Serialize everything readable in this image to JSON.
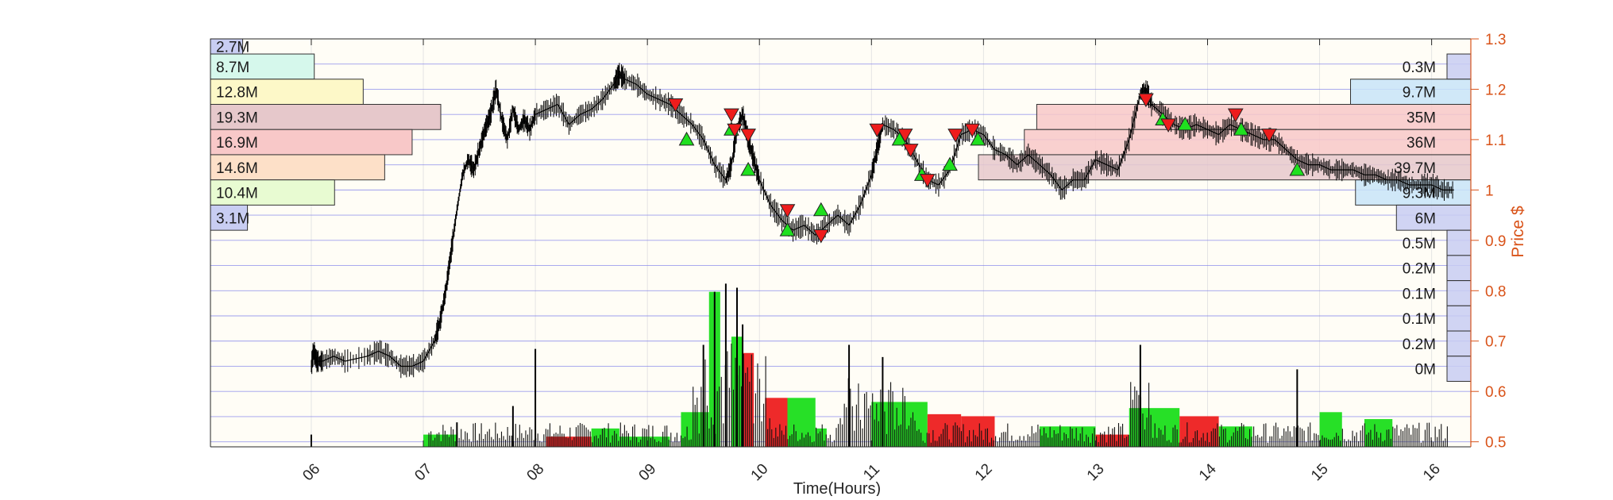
{
  "chart_data": {
    "type": "line",
    "title": "",
    "xlabel": "Time(Hours)",
    "ylabel": "Price $",
    "x_ticks": [
      "06",
      "07",
      "08",
      "09",
      "10",
      "11",
      "12",
      "13",
      "14",
      "15",
      "16"
    ],
    "x_range": [
      5.1,
      16.35
    ],
    "y_ticks": [
      0.5,
      0.6,
      0.7,
      0.8,
      0.9,
      1,
      1.1,
      1.2,
      1.3
    ],
    "y_tick_labels": [
      "0.5",
      "0.6",
      "0.7",
      "0.8",
      "0.9",
      "1",
      "1.1",
      "1.2",
      "1.3"
    ],
    "ylim": [
      0.49,
      1.3
    ],
    "grid": true,
    "price_series": {
      "x": [
        5.1,
        5.3,
        5.7,
        6.0,
        6.02,
        6.05,
        6.1,
        6.2,
        6.3,
        6.5,
        6.6,
        6.7,
        6.8,
        6.9,
        7.0,
        7.1,
        7.15,
        7.2,
        7.25,
        7.3,
        7.35,
        7.4,
        7.45,
        7.5,
        7.55,
        7.6,
        7.65,
        7.7,
        7.75,
        7.8,
        7.85,
        7.9,
        7.95,
        8.0,
        8.1,
        8.2,
        8.3,
        8.4,
        8.5,
        8.6,
        8.7,
        8.75,
        8.8,
        8.9,
        9.0,
        9.1,
        9.2,
        9.3,
        9.4,
        9.5,
        9.6,
        9.7,
        9.75,
        9.8,
        9.85,
        9.9,
        9.95,
        10.0,
        10.1,
        10.2,
        10.3,
        10.4,
        10.5,
        10.6,
        10.7,
        10.8,
        10.9,
        11.0,
        11.05,
        11.1,
        11.2,
        11.3,
        11.4,
        11.5,
        11.6,
        11.7,
        11.8,
        11.9,
        12.0,
        12.1,
        12.2,
        12.3,
        12.4,
        12.5,
        12.6,
        12.7,
        12.8,
        12.9,
        13.0,
        13.1,
        13.2,
        13.3,
        13.4,
        13.45,
        13.5,
        13.6,
        13.7,
        13.8,
        13.9,
        14.0,
        14.1,
        14.2,
        14.3,
        14.4,
        14.5,
        14.6,
        14.7,
        14.8,
        14.9,
        15.0,
        15.1,
        15.2,
        15.3,
        15.4,
        15.5,
        15.6,
        15.7,
        15.8,
        15.9,
        16.0,
        16.1,
        16.2
      ],
      "y": [
        null,
        null,
        null,
        0.65,
        0.68,
        0.66,
        0.66,
        0.67,
        0.66,
        0.67,
        0.68,
        0.67,
        0.65,
        0.65,
        0.66,
        0.7,
        0.74,
        0.8,
        0.88,
        0.96,
        1.03,
        1.06,
        1.04,
        1.08,
        1.12,
        1.15,
        1.2,
        1.14,
        1.1,
        1.16,
        1.12,
        1.14,
        1.12,
        1.15,
        1.16,
        1.17,
        1.13,
        1.15,
        1.16,
        1.18,
        1.21,
        1.23,
        1.22,
        1.21,
        1.19,
        1.18,
        1.17,
        1.15,
        1.13,
        1.1,
        1.05,
        1.02,
        1.05,
        1.12,
        1.15,
        1.1,
        1.06,
        1.02,
        0.97,
        0.94,
        0.92,
        0.93,
        0.91,
        0.93,
        0.95,
        0.93,
        0.97,
        1.03,
        1.08,
        1.13,
        1.12,
        1.1,
        1.06,
        1.02,
        1.01,
        1.04,
        1.11,
        1.12,
        1.11,
        1.08,
        1.07,
        1.05,
        1.07,
        1.05,
        1.03,
        1.0,
        1.02,
        1.02,
        1.06,
        1.05,
        1.04,
        1.1,
        1.19,
        1.2,
        1.17,
        1.15,
        1.13,
        1.12,
        1.13,
        1.12,
        1.11,
        1.13,
        1.12,
        1.11,
        1.1,
        1.1,
        1.08,
        1.06,
        1.05,
        1.05,
        1.04,
        1.04,
        1.04,
        1.03,
        1.03,
        1.02,
        1.02,
        1.01,
        1.01,
        1.01,
        1.0,
        1.0
      ]
    },
    "volume_profile_left": [
      {
        "label": "2.7M",
        "price_low": 1.27,
        "price_high": 1.3,
        "value": 2.7,
        "color": "#c8cdf2"
      },
      {
        "label": "8.7M",
        "price_low": 1.22,
        "price_high": 1.27,
        "value": 8.7,
        "color": "#d6f8ec"
      },
      {
        "label": "12.8M",
        "price_low": 1.17,
        "price_high": 1.22,
        "value": 12.8,
        "color": "#fdf8c8"
      },
      {
        "label": "19.3M",
        "price_low": 1.12,
        "price_high": 1.17,
        "value": 19.3,
        "color": "#e6c8cb"
      },
      {
        "label": "16.9M",
        "price_low": 1.07,
        "price_high": 1.12,
        "value": 16.9,
        "color": "#f8c8c8"
      },
      {
        "label": "14.6M",
        "price_low": 1.02,
        "price_high": 1.07,
        "value": 14.6,
        "color": "#fde0c8"
      },
      {
        "label": "10.4M",
        "price_low": 0.97,
        "price_high": 1.02,
        "value": 10.4,
        "color": "#e8fbd2"
      },
      {
        "label": "3.1M",
        "price_low": 0.92,
        "price_high": 0.97,
        "value": 3.1,
        "color": "#c8cdf2"
      }
    ],
    "volume_profile_right": [
      {
        "label": "0.3M",
        "price_low": 1.22,
        "price_high": 1.27,
        "value": 0.3,
        "color": "#c8cdf2"
      },
      {
        "label": "9.7M",
        "price_low": 1.17,
        "price_high": 1.22,
        "value": 9.7,
        "color": "#c8e4f8"
      },
      {
        "label": "35M",
        "price_low": 1.12,
        "price_high": 1.17,
        "value": 35,
        "color": "#f8c8c8"
      },
      {
        "label": "36M",
        "price_low": 1.07,
        "price_high": 1.12,
        "value": 36,
        "color": "#f8c8c8"
      },
      {
        "label": "39.7M",
        "price_low": 1.02,
        "price_high": 1.07,
        "value": 39.7,
        "color": "#e6c8cb"
      },
      {
        "label": "9.3M",
        "price_low": 0.97,
        "price_high": 1.02,
        "value": 9.3,
        "color": "#c8e4f8"
      },
      {
        "label": "6M",
        "price_low": 0.92,
        "price_high": 0.97,
        "value": 6,
        "color": "#c8cdf2"
      },
      {
        "label": "0.5M",
        "price_low": 0.87,
        "price_high": 0.92,
        "value": 0.5,
        "color": "#c8cdf2"
      },
      {
        "label": "0.2M",
        "price_low": 0.82,
        "price_high": 0.87,
        "value": 0.2,
        "color": "#c8cdf2"
      },
      {
        "label": "0.1M",
        "price_low": 0.77,
        "price_high": 0.82,
        "value": 0.1,
        "color": "#c8cdf2"
      },
      {
        "label": "0.1M",
        "price_low": 0.72,
        "price_high": 0.77,
        "value": 0.1,
        "color": "#c8cdf2"
      },
      {
        "label": "0.2M",
        "price_low": 0.67,
        "price_high": 0.72,
        "value": 0.2,
        "color": "#c8cdf2"
      },
      {
        "label": "0M",
        "price_low": 0.62,
        "price_high": 0.67,
        "value": 0,
        "color": "#c8cdf2"
      }
    ],
    "volume_blocks": [
      {
        "x_start": 7.0,
        "x_end": 7.3,
        "level": 0.03,
        "color": "green"
      },
      {
        "x_start": 8.1,
        "x_end": 8.5,
        "level": 0.025,
        "color": "red"
      },
      {
        "x_start": 8.5,
        "x_end": 8.75,
        "level": 0.045,
        "color": "green"
      },
      {
        "x_start": 8.75,
        "x_end": 9.2,
        "level": 0.025,
        "color": "green"
      },
      {
        "x_start": 9.3,
        "x_end": 9.55,
        "level": 0.085,
        "color": "green"
      },
      {
        "x_start": 9.55,
        "x_end": 9.65,
        "level": 0.38,
        "color": "green"
      },
      {
        "x_start": 9.75,
        "x_end": 9.85,
        "level": 0.27,
        "color": "green"
      },
      {
        "x_start": 9.85,
        "x_end": 9.95,
        "level": 0.23,
        "color": "red"
      },
      {
        "x_start": 10.05,
        "x_end": 10.25,
        "level": 0.12,
        "color": "red"
      },
      {
        "x_start": 10.25,
        "x_end": 10.5,
        "level": 0.12,
        "color": "green"
      },
      {
        "x_start": 10.5,
        "x_end": 10.6,
        "level": 0.045,
        "color": "green"
      },
      {
        "x_start": 11.0,
        "x_end": 11.5,
        "level": 0.11,
        "color": "green"
      },
      {
        "x_start": 11.5,
        "x_end": 11.8,
        "level": 0.08,
        "color": "red"
      },
      {
        "x_start": 11.8,
        "x_end": 12.1,
        "level": 0.075,
        "color": "red"
      },
      {
        "x_start": 12.5,
        "x_end": 13.0,
        "level": 0.05,
        "color": "green"
      },
      {
        "x_start": 13.0,
        "x_end": 13.3,
        "level": 0.03,
        "color": "red"
      },
      {
        "x_start": 13.3,
        "x_end": 13.75,
        "level": 0.095,
        "color": "green"
      },
      {
        "x_start": 13.75,
        "x_end": 14.1,
        "level": 0.075,
        "color": "red"
      },
      {
        "x_start": 14.1,
        "x_end": 14.4,
        "level": 0.05,
        "color": "green"
      },
      {
        "x_start": 15.0,
        "x_end": 15.2,
        "level": 0.085,
        "color": "green"
      },
      {
        "x_start": 15.4,
        "x_end": 15.65,
        "level": 0.068,
        "color": "green"
      }
    ],
    "volume_spikes": [
      {
        "x": 6.0,
        "level": 0.03
      },
      {
        "x": 7.3,
        "level": 0.06
      },
      {
        "x": 7.8,
        "level": 0.1
      },
      {
        "x": 8.0,
        "level": 0.24
      },
      {
        "x": 9.5,
        "level": 0.25
      },
      {
        "x": 9.6,
        "level": 0.38
      },
      {
        "x": 9.7,
        "level": 0.4
      },
      {
        "x": 9.8,
        "level": 0.39
      },
      {
        "x": 9.85,
        "level": 0.3
      },
      {
        "x": 10.8,
        "level": 0.25
      },
      {
        "x": 11.1,
        "level": 0.22
      },
      {
        "x": 13.4,
        "level": 0.25
      },
      {
        "x": 14.8,
        "level": 0.19
      }
    ],
    "buy_markers": [
      {
        "x": 9.35,
        "y": 1.1
      },
      {
        "x": 9.75,
        "y": 1.12
      },
      {
        "x": 9.9,
        "y": 1.04
      },
      {
        "x": 10.25,
        "y": 0.92
      },
      {
        "x": 10.55,
        "y": 0.96
      },
      {
        "x": 11.25,
        "y": 1.1
      },
      {
        "x": 11.45,
        "y": 1.03
      },
      {
        "x": 11.7,
        "y": 1.05
      },
      {
        "x": 11.95,
        "y": 1.1
      },
      {
        "x": 13.6,
        "y": 1.14
      },
      {
        "x": 13.8,
        "y": 1.13
      },
      {
        "x": 14.3,
        "y": 1.12
      },
      {
        "x": 14.8,
        "y": 1.04
      }
    ],
    "sell_markers": [
      {
        "x": 9.25,
        "y": 1.17
      },
      {
        "x": 9.75,
        "y": 1.15
      },
      {
        "x": 9.78,
        "y": 1.12
      },
      {
        "x": 9.9,
        "y": 1.11
      },
      {
        "x": 10.25,
        "y": 0.96
      },
      {
        "x": 10.55,
        "y": 0.91
      },
      {
        "x": 11.05,
        "y": 1.12
      },
      {
        "x": 11.3,
        "y": 1.11
      },
      {
        "x": 11.35,
        "y": 1.08
      },
      {
        "x": 11.5,
        "y": 1.02
      },
      {
        "x": 11.75,
        "y": 1.11
      },
      {
        "x": 11.9,
        "y": 1.12
      },
      {
        "x": 13.45,
        "y": 1.18
      },
      {
        "x": 13.65,
        "y": 1.13
      },
      {
        "x": 14.25,
        "y": 1.15
      },
      {
        "x": 14.55,
        "y": 1.11
      }
    ]
  }
}
